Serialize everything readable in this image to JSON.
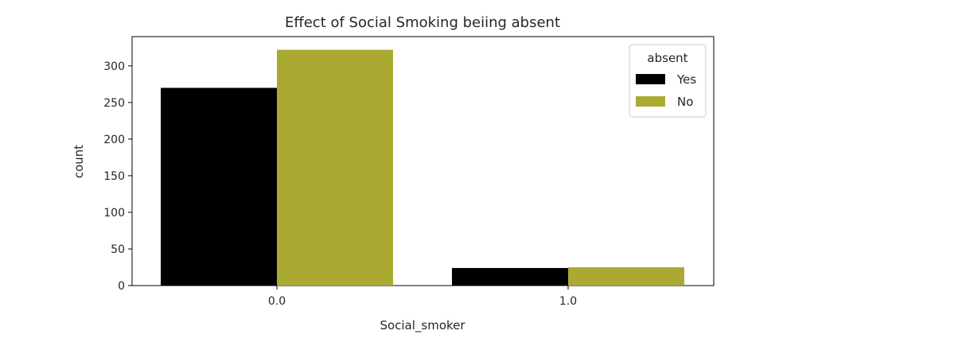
{
  "chart_data": {
    "type": "bar",
    "title": "Effect of Social Smoking beiing absent",
    "xlabel": "Social_smoker",
    "ylabel": "count",
    "categories": [
      "0.0",
      "1.0"
    ],
    "series": [
      {
        "name": "Yes",
        "color": "#000000",
        "values": [
          270,
          24
        ]
      },
      {
        "name": "No",
        "color": "#aaaa33",
        "values": [
          322,
          25
        ]
      }
    ],
    "ylim": [
      0,
      340
    ],
    "yticks": [
      0,
      50,
      100,
      150,
      200,
      250,
      300
    ],
    "legend": {
      "title": "absent",
      "position": "top-right"
    },
    "grid": false
  }
}
